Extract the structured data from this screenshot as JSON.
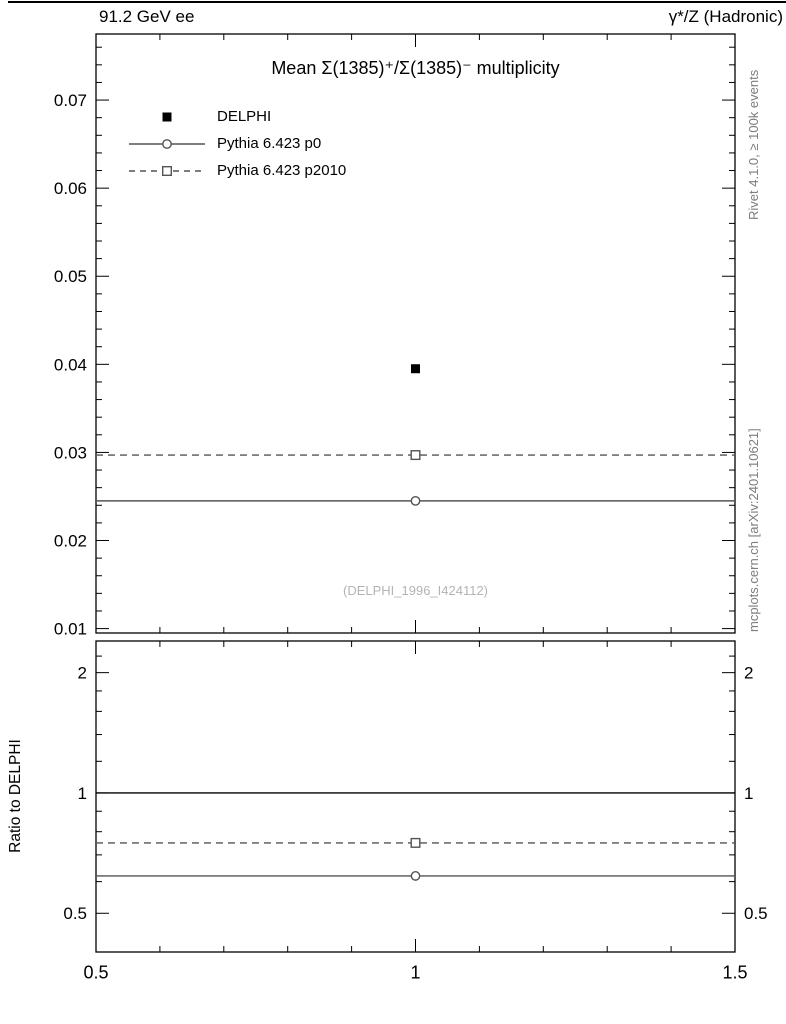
{
  "header": {
    "left": "91.2 GeV ee",
    "right": "γ*/Z (Hadronic)"
  },
  "main_title": "Mean Σ(1385)⁺/Σ(1385)⁻ multiplicity",
  "watermark": "(DELPHI_1996_I424112)",
  "side_labels": {
    "top_right": "Rivet 4.1.0, ≥ 100k events",
    "bottom_right": "mcplots.cern.ch [arXiv:2401.10621]"
  },
  "legend": [
    {
      "label": "DELPHI",
      "marker": "filled-square",
      "line": "none",
      "color": "#000000"
    },
    {
      "label": "Pythia 6.423 p0",
      "marker": "open-circle",
      "line": "solid",
      "color": "#545454"
    },
    {
      "label": "Pythia 6.423 p2010",
      "marker": "open-square",
      "line": "dashed",
      "color": "#545454"
    }
  ],
  "chart_data": [
    {
      "type": "line",
      "panel": "main",
      "title": "Mean Σ(1385)⁺/Σ(1385)⁻ multiplicity",
      "xlim": [
        0.5,
        1.5
      ],
      "x_minor_step": 0.1,
      "ylim": [
        0.0095,
        0.0775
      ],
      "yscale": "linear",
      "yticks": [
        0.01,
        0.02,
        0.03,
        0.04,
        0.05,
        0.06,
        0.07
      ],
      "ytick_labels": [
        "0.01",
        "0.02",
        "0.03",
        "0.04",
        "0.05",
        "0.06",
        "0.07"
      ],
      "y_minor_step": 0.002,
      "grid": false,
      "legend_position": "top-left",
      "series": [
        {
          "name": "DELPHI",
          "type": "scatter",
          "marker": "filled-square",
          "color": "#000000",
          "x": [
            1.0
          ],
          "y": [
            0.0395
          ]
        },
        {
          "name": "Pythia 6.423 p0",
          "type": "hline",
          "line": "solid",
          "marker": "open-circle",
          "color": "#545454",
          "y": 0.0245,
          "marker_x": 1.0
        },
        {
          "name": "Pythia 6.423 p2010",
          "type": "hline",
          "line": "dashed",
          "marker": "open-square",
          "color": "#545454",
          "y": 0.0297,
          "marker_x": 1.0
        }
      ]
    },
    {
      "type": "line",
      "panel": "ratio",
      "ylabel": "Ratio to DELPHI",
      "xlim": [
        0.5,
        1.5
      ],
      "xticks": [
        0.5,
        1,
        1.5
      ],
      "xtick_labels": [
        "0.5",
        "1",
        "1.5"
      ],
      "ylim": [
        0.4,
        2.4
      ],
      "yscale": "log",
      "yticks": [
        0.5,
        1,
        2
      ],
      "ytick_labels": [
        "0.5",
        "1",
        "2"
      ],
      "y_minor": [
        0.4,
        0.6,
        0.7,
        0.8,
        0.9,
        1.2,
        1.4,
        1.6,
        1.8,
        2.2
      ],
      "grid": false,
      "series": [
        {
          "name": "reference",
          "type": "hline",
          "line": "solid",
          "color": "#000000",
          "y": 1.0
        },
        {
          "name": "Pythia 6.423 p0",
          "type": "hline",
          "line": "solid",
          "marker": "open-circle",
          "color": "#545454",
          "y": 0.62,
          "marker_x": 1.0
        },
        {
          "name": "Pythia 6.423 p2010",
          "type": "hline",
          "line": "dashed",
          "marker": "open-square",
          "color": "#545454",
          "y": 0.75,
          "marker_x": 1.0
        }
      ]
    }
  ]
}
